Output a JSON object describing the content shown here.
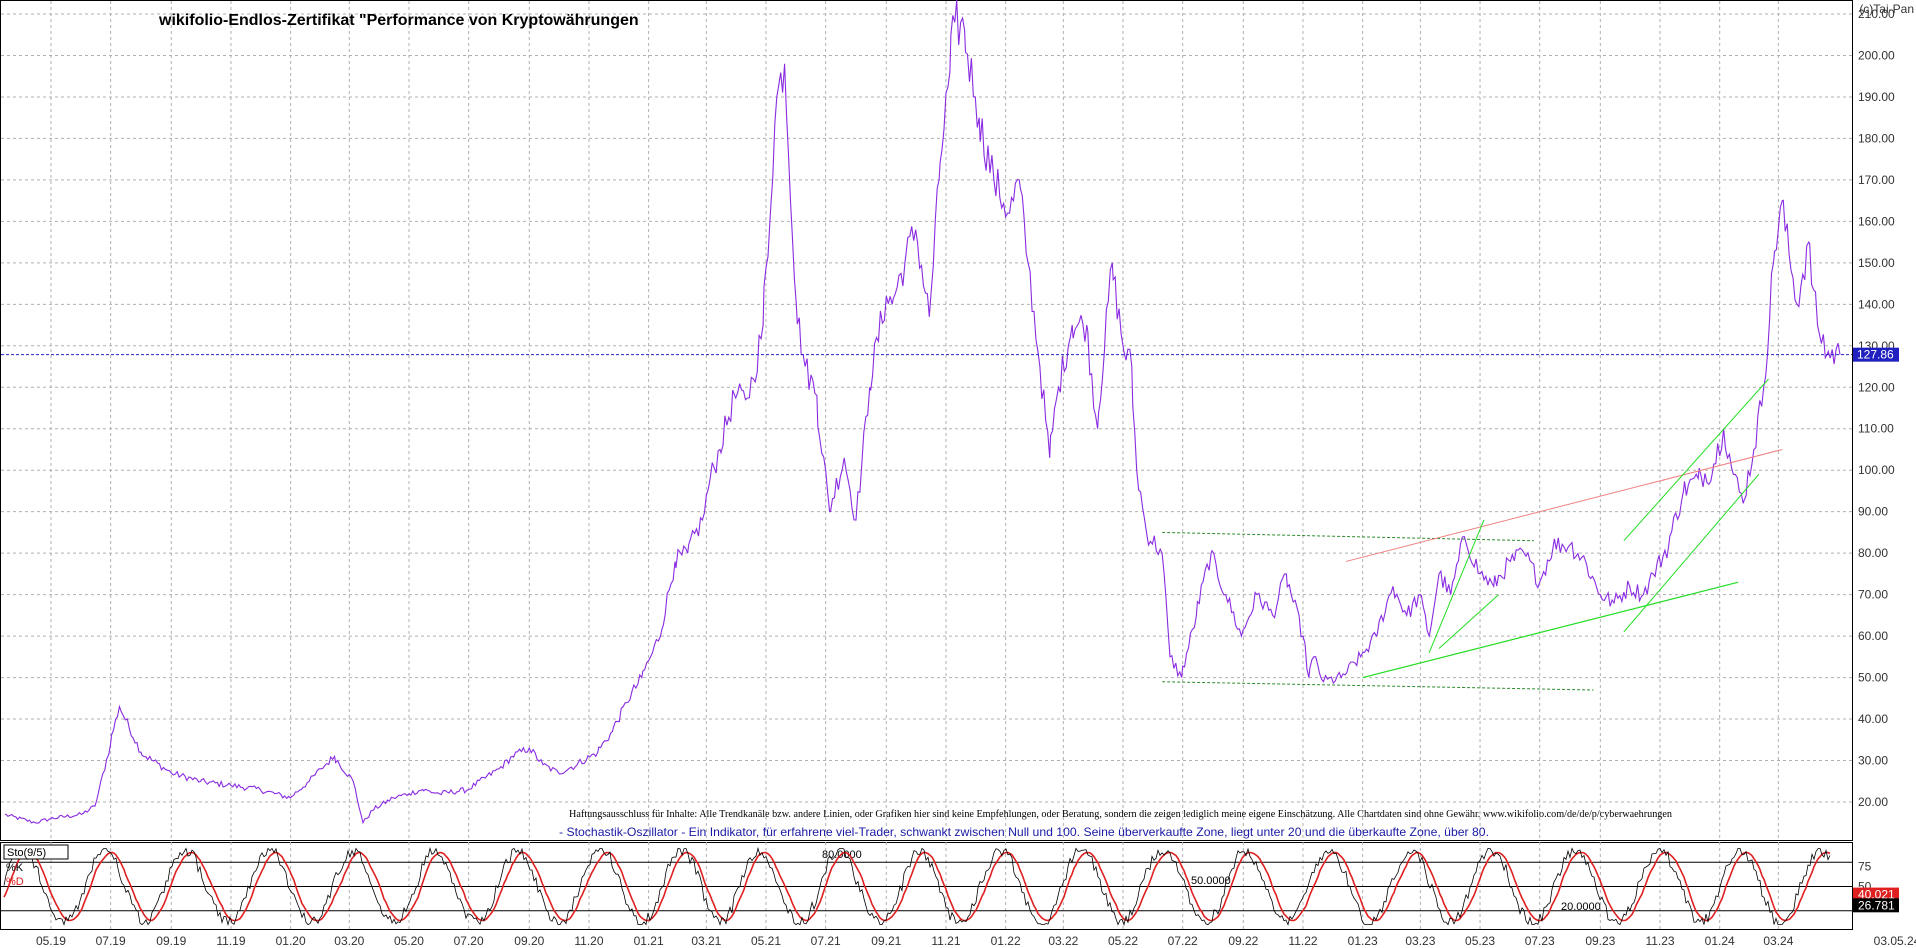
{
  "header": {
    "title": "wikifolio-Endlos-Zertifikat \"Performance von Kryptowährungen",
    "copyright": "(c)Tai-Pan"
  },
  "disclaimer": "Haftungsausschluss für Inhalte: Alle Trendkanäle bzw. andere Linien, oder Grafiken hier sind keine Empfehlungen, oder Beratung, sondern die zeigen lediglich meine eigene Einschätzung. Alle Chartdaten sind ohne Gewähr.  www.wikifolio.com/de/de/p/cyberwaehrungen",
  "stoch_note": "- Stochastik-Oszillator - Ein Indikator, für erfahrene viel-Trader, schwankt zwischen Null und 100. Seine überverkaufte Zone, liegt unter 20 und die überkaufte Zone, über 80.",
  "colors": {
    "price": "#8a2be2",
    "grid": "#b0b0b0",
    "last_price_line": "#2020c0",
    "channel_dark_green": "#2e8b2e",
    "channel_light_green": "#22dd22",
    "trend_red": "#f08080",
    "stoch_k": "#000000",
    "stoch_d": "#e02020"
  },
  "chart_data": [
    {
      "type": "line",
      "title": "wikifolio-Endlos-Zertifikat \"Performance von Kryptowährungen",
      "ylim": [
        11,
        213
      ],
      "y_ticks": [
        "20.00",
        "30.00",
        "40.00",
        "50.00",
        "60.00",
        "70.00",
        "80.00",
        "90.00",
        "100.00",
        "110.00",
        "120.00",
        "130.00",
        "140.00",
        "150.00",
        "160.00",
        "170.00",
        "180.00",
        "190.00",
        "200.00",
        "210.00"
      ],
      "x_ticks": [
        "05.19",
        "07.19",
        "09.19",
        "11.19",
        "01.20",
        "03.20",
        "05.20",
        "07.20",
        "09.20",
        "11.20",
        "01.21",
        "03.21",
        "05.21",
        "07.21",
        "09.21",
        "11.21",
        "01.22",
        "03.22",
        "05.22",
        "07.22",
        "09.22",
        "11.22",
        "01.23",
        "03.23",
        "05.23",
        "07.23",
        "09.23",
        "11.23",
        "01.24",
        "03.24"
      ],
      "end_date_label": "03.05.24",
      "last_price": 127.86,
      "last_price_label": "127.86",
      "series": [
        {
          "x": [
            "2019-03-15",
            "2019-04-15",
            "2019-05-01",
            "2019-06-01",
            "2019-06-15",
            "2019-07-01",
            "2019-07-10",
            "2019-08-01",
            "2019-09-01",
            "2019-10-01",
            "2019-11-01",
            "2019-12-01",
            "2020-01-01",
            "2020-01-20",
            "2020-02-01",
            "2020-02-15",
            "2020-03-05",
            "2020-03-15",
            "2020-03-25",
            "2020-04-15",
            "2020-05-01",
            "2020-05-15",
            "2020-06-01",
            "2020-07-01",
            "2020-08-01",
            "2020-08-15",
            "2020-09-01",
            "2020-09-15",
            "2020-10-01",
            "2020-10-20",
            "2020-11-10",
            "2020-11-25",
            "2020-12-10",
            "2020-12-25",
            "2021-01-05",
            "2021-01-15",
            "2021-01-28",
            "2021-02-10",
            "2021-02-25",
            "2021-03-05",
            "2021-03-15",
            "2021-03-30",
            "2021-04-10",
            "2021-04-18",
            "2021-04-28",
            "2021-05-05",
            "2021-05-12",
            "2021-05-20",
            "2021-06-01",
            "2021-06-10",
            "2021-06-22",
            "2021-07-05",
            "2021-07-20",
            "2021-08-01",
            "2021-08-15",
            "2021-09-01",
            "2021-09-07",
            "2021-09-20",
            "2021-10-01",
            "2021-10-15",
            "2021-10-25",
            "2021-11-05",
            "2021-11-10",
            "2021-11-20",
            "2021-12-01",
            "2021-12-05",
            "2021-12-20",
            "2022-01-05",
            "2022-01-15",
            "2022-01-24",
            "2022-02-05",
            "2022-02-15",
            "2022-02-24",
            "2022-03-10",
            "2022-03-25",
            "2022-04-05",
            "2022-04-20",
            "2022-05-01",
            "2022-05-10",
            "2022-05-15",
            "2022-05-25",
            "2022-06-10",
            "2022-06-18",
            "2022-06-30",
            "2022-07-15",
            "2022-07-30",
            "2022-08-14",
            "2022-08-30",
            "2022-09-15",
            "2022-10-01",
            "2022-10-15",
            "2022-11-01",
            "2022-11-07",
            "2022-11-12",
            "2022-11-22",
            "2022-12-10",
            "2022-12-30",
            "2023-01-15",
            "2023-02-01",
            "2023-02-15",
            "2023-03-01",
            "2023-03-10",
            "2023-03-20",
            "2023-04-01",
            "2023-04-15",
            "2023-05-01",
            "2023-05-15",
            "2023-06-01",
            "2023-06-15",
            "2023-07-01",
            "2023-07-15",
            "2023-08-01",
            "2023-08-17",
            "2023-09-01",
            "2023-09-15",
            "2023-10-01",
            "2023-10-15",
            "2023-10-25",
            "2023-11-10",
            "2023-11-25",
            "2023-12-10",
            "2023-12-25",
            "2024-01-05",
            "2024-01-15",
            "2024-01-25",
            "2024-02-05",
            "2024-02-15",
            "2024-02-25",
            "2024-03-05",
            "2024-03-12",
            "2024-03-20",
            "2024-04-01",
            "2024-04-10",
            "2024-04-20",
            "2024-05-03"
          ],
          "values": [
            17,
            15,
            16,
            17,
            19,
            34,
            43,
            32,
            27,
            25,
            24,
            23,
            21,
            25,
            28,
            31,
            25,
            15,
            18,
            21,
            22,
            23,
            22,
            23,
            28,
            31,
            33,
            29,
            27,
            29,
            32,
            37,
            44,
            50,
            56,
            62,
            78,
            80,
            88,
            98,
            105,
            118,
            117,
            122,
            135,
            160,
            190,
            198,
            140,
            125,
            118,
            90,
            103,
            88,
            120,
            142,
            140,
            150,
            158,
            137,
            170,
            196,
            208,
            206,
            190,
            185,
            170,
            162,
            170,
            150,
            125,
            103,
            120,
            135,
            135,
            110,
            150,
            130,
            125,
            100,
            85,
            80,
            55,
            50,
            65,
            80,
            70,
            60,
            70,
            65,
            75,
            60,
            50,
            55,
            49,
            50,
            55,
            60,
            72,
            65,
            70,
            60,
            75,
            70,
            84,
            75,
            72,
            78,
            80,
            73,
            82,
            82,
            78,
            70,
            68,
            72,
            70,
            75,
            82,
            95,
            98,
            100,
            110,
            99,
            92,
            105,
            120,
            150,
            165,
            152,
            140,
            155,
            135,
            128,
            127.86
          ]
        }
      ]
    },
    {
      "type": "line",
      "title": "Sto(9/5)",
      "ylim": [
        0,
        100
      ],
      "y_ticks": [
        "25",
        "50",
        "75"
      ],
      "series": [
        {
          "name": "%K"
        },
        {
          "name": "%D"
        }
      ],
      "levels": [
        {
          "value": 80,
          "label": "80.0000"
        },
        {
          "value": 50,
          "label": "50.0000"
        },
        {
          "value": 20,
          "label": "20.0000"
        }
      ],
      "last_k": 40.021,
      "last_d": 26.781,
      "last_k_label": "40.021",
      "last_d_label": "26.781"
    }
  ]
}
